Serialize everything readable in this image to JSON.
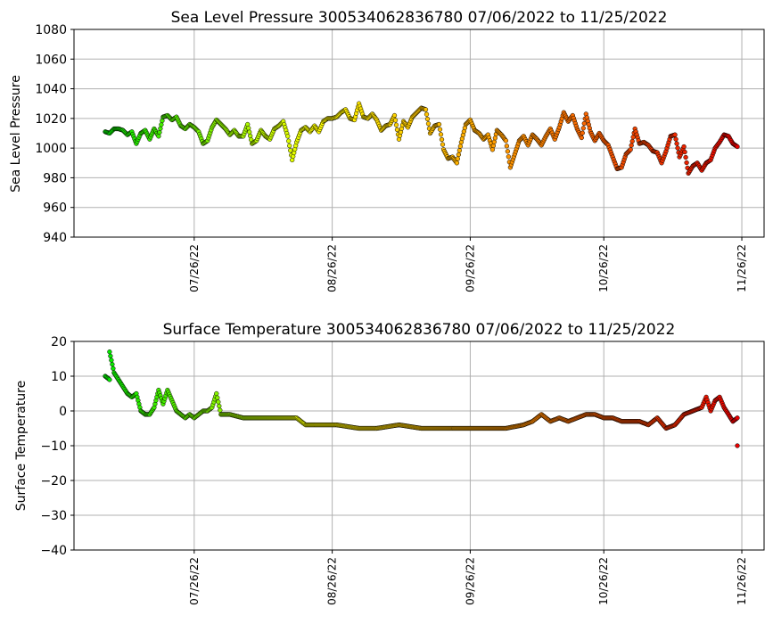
{
  "chart_data": [
    {
      "type": "scatter",
      "title": "Sea Level Pressure 300534062836780  07/06/2022 to 11/25/2022",
      "xlabel": "",
      "ylabel": "Sea Level Pressure",
      "x_type": "date",
      "xlim": [
        "2022-06-29",
        "2022-12-01"
      ],
      "ylim": [
        940,
        1080
      ],
      "yticks": [
        940,
        960,
        980,
        1000,
        1020,
        1040,
        1060,
        1080
      ],
      "xticks": [
        "2022-07-26",
        "2022-08-26",
        "2022-09-26",
        "2022-10-26",
        "2022-11-26"
      ],
      "xtick_labels": [
        "07/26/22",
        "08/26/22",
        "09/26/22",
        "10/26/22",
        "11/26/22"
      ],
      "grid": true,
      "marker_edge_color": "#000000",
      "color_ramp": [
        "#00e600",
        "#ffff00",
        "#ff8c00",
        "#e60000"
      ],
      "points": [
        [
          "2022-07-06",
          1011
        ],
        [
          "2022-07-07",
          1010
        ],
        [
          "2022-07-08",
          1013
        ],
        [
          "2022-07-09",
          1013
        ],
        [
          "2022-07-10",
          1012
        ],
        [
          "2022-07-11",
          1009
        ],
        [
          "2022-07-12",
          1011
        ],
        [
          "2022-07-13",
          1003
        ],
        [
          "2022-07-14",
          1010
        ],
        [
          "2022-07-15",
          1012
        ],
        [
          "2022-07-16",
          1006
        ],
        [
          "2022-07-17",
          1013
        ],
        [
          "2022-07-18",
          1008
        ],
        [
          "2022-07-19",
          1021
        ],
        [
          "2022-07-20",
          1022
        ],
        [
          "2022-07-21",
          1019
        ],
        [
          "2022-07-22",
          1021
        ],
        [
          "2022-07-23",
          1015
        ],
        [
          "2022-07-24",
          1013
        ],
        [
          "2022-07-25",
          1016
        ],
        [
          "2022-07-26",
          1014
        ],
        [
          "2022-07-27",
          1011
        ],
        [
          "2022-07-28",
          1003
        ],
        [
          "2022-07-29",
          1005
        ],
        [
          "2022-07-30",
          1014
        ],
        [
          "2022-07-31",
          1019
        ],
        [
          "2022-08-01",
          1016
        ],
        [
          "2022-08-02",
          1013
        ],
        [
          "2022-08-03",
          1009
        ],
        [
          "2022-08-04",
          1012
        ],
        [
          "2022-08-05",
          1008
        ],
        [
          "2022-08-06",
          1008
        ],
        [
          "2022-08-07",
          1016
        ],
        [
          "2022-08-08",
          1003
        ],
        [
          "2022-08-09",
          1005
        ],
        [
          "2022-08-10",
          1012
        ],
        [
          "2022-08-11",
          1008
        ],
        [
          "2022-08-12",
          1006
        ],
        [
          "2022-08-13",
          1013
        ],
        [
          "2022-08-14",
          1015
        ],
        [
          "2022-08-15",
          1018
        ],
        [
          "2022-08-16",
          1008
        ],
        [
          "2022-08-17",
          992
        ],
        [
          "2022-08-18",
          1004
        ],
        [
          "2022-08-19",
          1012
        ],
        [
          "2022-08-20",
          1014
        ],
        [
          "2022-08-21",
          1011
        ],
        [
          "2022-08-22",
          1015
        ],
        [
          "2022-08-23",
          1011
        ],
        [
          "2022-08-24",
          1018
        ],
        [
          "2022-08-25",
          1020
        ],
        [
          "2022-08-26",
          1020
        ],
        [
          "2022-08-27",
          1021
        ],
        [
          "2022-08-28",
          1024
        ],
        [
          "2022-08-29",
          1026
        ],
        [
          "2022-08-30",
          1020
        ],
        [
          "2022-08-31",
          1019
        ],
        [
          "2022-09-01",
          1030
        ],
        [
          "2022-09-02",
          1021
        ],
        [
          "2022-09-03",
          1020
        ],
        [
          "2022-09-04",
          1023
        ],
        [
          "2022-09-05",
          1019
        ],
        [
          "2022-09-06",
          1012
        ],
        [
          "2022-09-07",
          1015
        ],
        [
          "2022-09-08",
          1016
        ],
        [
          "2022-09-09",
          1022
        ],
        [
          "2022-09-10",
          1006
        ],
        [
          "2022-09-11",
          1018
        ],
        [
          "2022-09-12",
          1014
        ],
        [
          "2022-09-13",
          1021
        ],
        [
          "2022-09-14",
          1024
        ],
        [
          "2022-09-15",
          1027
        ],
        [
          "2022-09-16",
          1026
        ],
        [
          "2022-09-17",
          1010
        ],
        [
          "2022-09-18",
          1015
        ],
        [
          "2022-09-19",
          1016
        ],
        [
          "2022-09-20",
          999
        ],
        [
          "2022-09-21",
          993
        ],
        [
          "2022-09-22",
          994
        ],
        [
          "2022-09-23",
          990
        ],
        [
          "2022-09-24",
          1004
        ],
        [
          "2022-09-25",
          1016
        ],
        [
          "2022-09-26",
          1019
        ],
        [
          "2022-09-27",
          1012
        ],
        [
          "2022-09-28",
          1010
        ],
        [
          "2022-09-29",
          1006
        ],
        [
          "2022-09-30",
          1009
        ],
        [
          "2022-10-01",
          999
        ],
        [
          "2022-10-02",
          1012
        ],
        [
          "2022-10-03",
          1009
        ],
        [
          "2022-10-04",
          1005
        ],
        [
          "2022-10-05",
          987
        ],
        [
          "2022-10-06",
          996
        ],
        [
          "2022-10-07",
          1005
        ],
        [
          "2022-10-08",
          1008
        ],
        [
          "2022-10-09",
          1002
        ],
        [
          "2022-10-10",
          1009
        ],
        [
          "2022-10-11",
          1006
        ],
        [
          "2022-10-12",
          1002
        ],
        [
          "2022-10-13",
          1008
        ],
        [
          "2022-10-14",
          1013
        ],
        [
          "2022-10-15",
          1006
        ],
        [
          "2022-10-16",
          1014
        ],
        [
          "2022-10-17",
          1024
        ],
        [
          "2022-10-18",
          1018
        ],
        [
          "2022-10-19",
          1022
        ],
        [
          "2022-10-20",
          1013
        ],
        [
          "2022-10-21",
          1007
        ],
        [
          "2022-10-22",
          1023
        ],
        [
          "2022-10-23",
          1011
        ],
        [
          "2022-10-24",
          1005
        ],
        [
          "2022-10-25",
          1010
        ],
        [
          "2022-10-26",
          1005
        ],
        [
          "2022-10-27",
          1002
        ],
        [
          "2022-10-28",
          994
        ],
        [
          "2022-10-29",
          986
        ],
        [
          "2022-10-30",
          987
        ],
        [
          "2022-10-31",
          996
        ],
        [
          "2022-11-01",
          999
        ],
        [
          "2022-11-02",
          1013
        ],
        [
          "2022-11-03",
          1003
        ],
        [
          "2022-11-04",
          1004
        ],
        [
          "2022-11-05",
          1002
        ],
        [
          "2022-11-06",
          998
        ],
        [
          "2022-11-07",
          997
        ],
        [
          "2022-11-08",
          990
        ],
        [
          "2022-11-09",
          998
        ],
        [
          "2022-11-10",
          1008
        ],
        [
          "2022-11-11",
          1009
        ],
        [
          "2022-11-12",
          994
        ],
        [
          "2022-11-13",
          1001
        ],
        [
          "2022-11-14",
          983
        ],
        [
          "2022-11-15",
          988
        ],
        [
          "2022-11-16",
          990
        ],
        [
          "2022-11-17",
          985
        ],
        [
          "2022-11-18",
          990
        ],
        [
          "2022-11-19",
          992
        ],
        [
          "2022-11-20",
          1000
        ],
        [
          "2022-11-21",
          1004
        ],
        [
          "2022-11-22",
          1009
        ],
        [
          "2022-11-23",
          1008
        ],
        [
          "2022-11-24",
          1003
        ],
        [
          "2022-11-25",
          1001
        ]
      ]
    },
    {
      "type": "scatter",
      "title": "Surface Temperature 300534062836780  07/06/2022 to 11/25/2022",
      "xlabel": "",
      "ylabel": "Surface Temperature",
      "x_type": "date",
      "xlim": [
        "2022-06-29",
        "2022-12-01"
      ],
      "ylim": [
        -40,
        20
      ],
      "yticks": [
        -40,
        -30,
        -20,
        -10,
        0,
        10,
        20
      ],
      "ytick_labels": [
        "−40",
        "−30",
        "−20",
        "−10",
        "0",
        "10",
        "20"
      ],
      "xticks": [
        "2022-07-26",
        "2022-08-26",
        "2022-09-26",
        "2022-10-26",
        "2022-11-26"
      ],
      "xtick_labels": [
        "07/26/22",
        "08/26/22",
        "09/26/22",
        "10/26/22",
        "11/26/22"
      ],
      "grid": true,
      "marker_edge_color": "#000000",
      "color_ramp": [
        "#00e600",
        "#ffff00",
        "#ff8c00",
        "#e60000"
      ],
      "points": [
        [
          "2022-07-06",
          10
        ],
        [
          "2022-07-07",
          9
        ],
        [
          "2022-07-07",
          17
        ],
        [
          "2022-07-08",
          11
        ],
        [
          "2022-07-09",
          9
        ],
        [
          "2022-07-10",
          7
        ],
        [
          "2022-07-11",
          5
        ],
        [
          "2022-07-12",
          4
        ],
        [
          "2022-07-13",
          5
        ],
        [
          "2022-07-14",
          0
        ],
        [
          "2022-07-15",
          -1
        ],
        [
          "2022-07-16",
          -1
        ],
        [
          "2022-07-17",
          1
        ],
        [
          "2022-07-18",
          6
        ],
        [
          "2022-07-19",
          2
        ],
        [
          "2022-07-20",
          6
        ],
        [
          "2022-07-21",
          3
        ],
        [
          "2022-07-22",
          0
        ],
        [
          "2022-07-23",
          -1
        ],
        [
          "2022-07-24",
          -2
        ],
        [
          "2022-07-25",
          -1
        ],
        [
          "2022-07-26",
          -2
        ],
        [
          "2022-07-27",
          -1
        ],
        [
          "2022-07-28",
          0
        ],
        [
          "2022-07-29",
          0
        ],
        [
          "2022-07-30",
          1
        ],
        [
          "2022-07-31",
          5
        ],
        [
          "2022-08-01",
          -1
        ],
        [
          "2022-08-03",
          -1
        ],
        [
          "2022-08-06",
          -2
        ],
        [
          "2022-08-10",
          -2
        ],
        [
          "2022-08-14",
          -2
        ],
        [
          "2022-08-18",
          -2
        ],
        [
          "2022-08-20",
          -4
        ],
        [
          "2022-08-23",
          -4
        ],
        [
          "2022-08-27",
          -4
        ],
        [
          "2022-09-01",
          -5
        ],
        [
          "2022-09-05",
          -5
        ],
        [
          "2022-09-10",
          -4
        ],
        [
          "2022-09-15",
          -5
        ],
        [
          "2022-09-20",
          -5
        ],
        [
          "2022-09-25",
          -5
        ],
        [
          "2022-09-30",
          -5
        ],
        [
          "2022-10-04",
          -5
        ],
        [
          "2022-10-08",
          -4
        ],
        [
          "2022-10-10",
          -3
        ],
        [
          "2022-10-12",
          -1
        ],
        [
          "2022-10-14",
          -3
        ],
        [
          "2022-10-16",
          -2
        ],
        [
          "2022-10-18",
          -3
        ],
        [
          "2022-10-20",
          -2
        ],
        [
          "2022-10-22",
          -1
        ],
        [
          "2022-10-24",
          -1
        ],
        [
          "2022-10-26",
          -2
        ],
        [
          "2022-10-28",
          -2
        ],
        [
          "2022-10-30",
          -3
        ],
        [
          "2022-11-01",
          -3
        ],
        [
          "2022-11-03",
          -3
        ],
        [
          "2022-11-05",
          -4
        ],
        [
          "2022-11-07",
          -2
        ],
        [
          "2022-11-09",
          -5
        ],
        [
          "2022-11-11",
          -4
        ],
        [
          "2022-11-13",
          -1
        ],
        [
          "2022-11-15",
          0
        ],
        [
          "2022-11-17",
          1
        ],
        [
          "2022-11-18",
          4
        ],
        [
          "2022-11-19",
          0
        ],
        [
          "2022-11-20",
          3
        ],
        [
          "2022-11-21",
          4
        ],
        [
          "2022-11-22",
          1
        ],
        [
          "2022-11-23",
          -1
        ],
        [
          "2022-11-24",
          -3
        ],
        [
          "2022-11-25",
          -2
        ],
        [
          "2022-11-25",
          -10
        ]
      ]
    }
  ]
}
